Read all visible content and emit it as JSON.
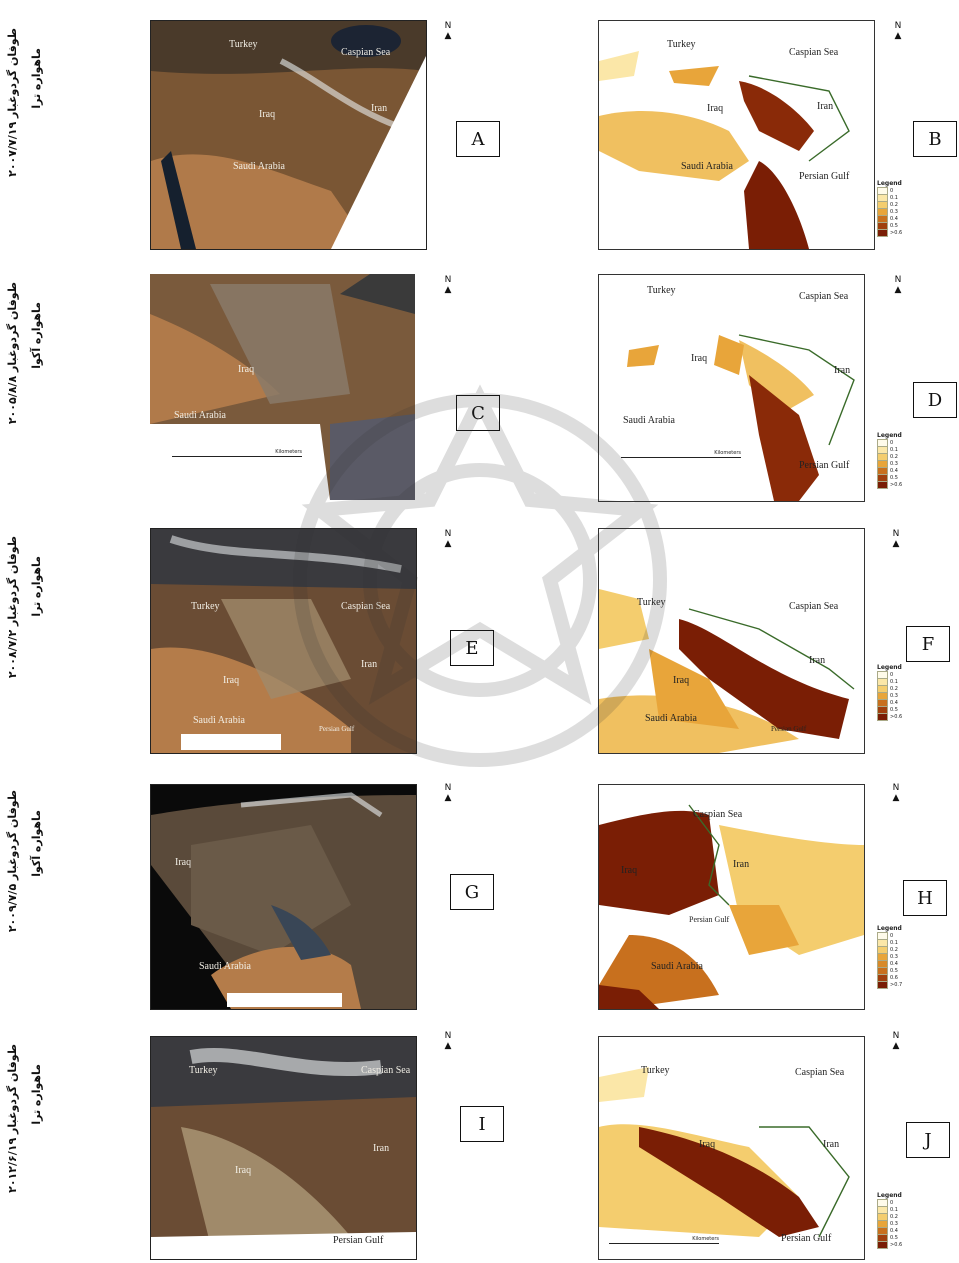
{
  "rows": [
    {
      "side_line1": "طوفان گردوغبار ۲۰۰۷/۷/۱۹",
      "side_line2": "ماهواره ترا",
      "left_label": "A",
      "right_label": "B",
      "left_places": [
        "Turkey",
        "Caspian Sea",
        "Iraq",
        "Iran",
        "Saudi Arabia"
      ],
      "right_places": [
        "Turkey",
        "Caspian Sea",
        "Iraq",
        "Iran",
        "Saudi Arabia",
        "Persian Gulf"
      ],
      "legend": [
        "0",
        "0.1",
        "0.2",
        "0.3",
        "0.4",
        "0.5",
        ">0.6"
      ]
    },
    {
      "side_line1": "طوفان گردوغبار ۲۰۰۵/۸/۸",
      "side_line2": "ماهواره آکوا",
      "left_label": "C",
      "right_label": "D",
      "left_places": [
        "Iraq",
        "Saudi Arabia"
      ],
      "right_places": [
        "Turkey",
        "Caspian Sea",
        "Iraq",
        "Iran",
        "Saudi Arabia",
        "Persian Gulf"
      ],
      "legend": [
        "0",
        "0.1",
        "0.2",
        "0.3",
        "0.4",
        "0.5",
        ">0.6"
      ]
    },
    {
      "side_line1": "طوفان گردوغبار ۲۰۰۸/۷/۲",
      "side_line2": "ماهواره ترا",
      "left_label": "E",
      "right_label": "F",
      "left_places": [
        "Turkey",
        "Caspian Sea",
        "Iran",
        "Iraq",
        "Saudi Arabia",
        "Persian Gulf"
      ],
      "right_places": [
        "Turkey",
        "Caspian Sea",
        "Iran",
        "Iraq",
        "Saudi Arabia",
        "Persian Gulf"
      ],
      "legend": [
        "0",
        "0.1",
        "0.2",
        "0.3",
        "0.4",
        "0.5",
        ">0.6"
      ]
    },
    {
      "side_line1": "طوفان گردوغبار ۲۰۰۹/۷/۵",
      "side_line2": "ماهواره آکوا",
      "left_label": "G",
      "right_label": "H",
      "left_places": [
        "Iraq",
        "Saudi Arabia"
      ],
      "right_places": [
        "Caspian Sea",
        "Iraq",
        "Iran",
        "Persian Gulf",
        "Saudi Arabia"
      ],
      "legend": [
        "0",
        "0.1",
        "0.2",
        "0.3",
        "0.4",
        "0.5",
        "0.6",
        ">0.7"
      ]
    },
    {
      "side_line1": "طوفان گردوغبار ۲۰۱۲/۶/۱۹",
      "side_line2": "ماهواره ترا",
      "left_label": "I",
      "right_label": "J",
      "left_places": [
        "Turkey",
        "Caspian Sea",
        "Iran",
        "Iraq",
        "Persian Gulf"
      ],
      "right_places": [
        "Turkey",
        "Caspian Sea",
        "Iraq",
        "Iran",
        "Persian Gulf"
      ],
      "legend": [
        "0",
        "0.1",
        "0.2",
        "0.3",
        "0.4",
        "0.5",
        ">0.6"
      ]
    }
  ],
  "legend_title": "Legend",
  "north_letter": "N",
  "scale_unit": "Kilometers",
  "colors": {
    "satellite_base": "#6b4a2c",
    "dust_low": "#fbe7a8",
    "dust_mid": "#e8a53a",
    "dust_high": "#7a1e05"
  }
}
